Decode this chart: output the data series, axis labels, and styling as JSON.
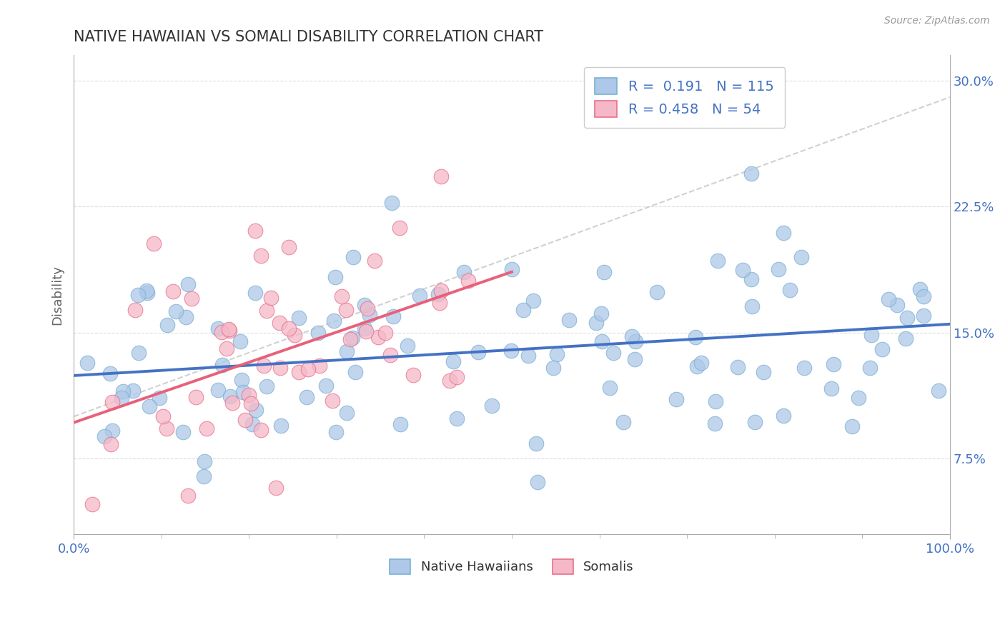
{
  "title": "NATIVE HAWAIIAN VS SOMALI DISABILITY CORRELATION CHART",
  "source": "Source: ZipAtlas.com",
  "ylabel": "Disability",
  "xlim": [
    0.0,
    1.0
  ],
  "ylim": [
    0.03,
    0.315
  ],
  "yticks": [
    0.075,
    0.15,
    0.225,
    0.3
  ],
  "ytick_labels": [
    "7.5%",
    "15.0%",
    "22.5%",
    "30.0%"
  ],
  "native_hawaiian_R": 0.191,
  "native_hawaiian_N": 115,
  "somali_R": 0.458,
  "somali_N": 54,
  "native_hawaiian_color": "#adc8e8",
  "native_hawaiian_edge": "#7bafd4",
  "somali_color": "#f5b8c8",
  "somali_edge": "#e8708a",
  "native_hawaiian_line_color": "#4472c4",
  "somali_line_color": "#e8607a",
  "trend_line_color": "#cccccc",
  "background_color": "#ffffff",
  "grid_color": "#dddddd",
  "title_color": "#333333",
  "axis_label_color": "#666666",
  "tick_color": "#4472c4",
  "legend_stats_color": "#4472c4",
  "source_color": "#999999"
}
